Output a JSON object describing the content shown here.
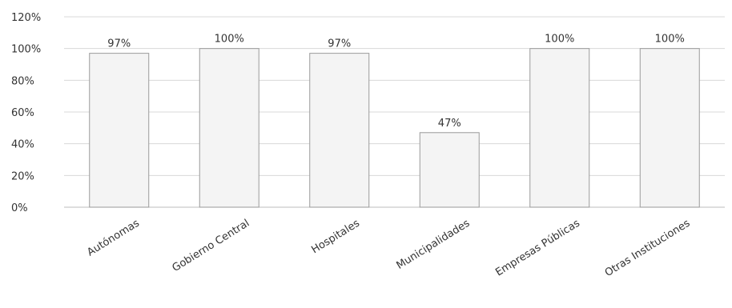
{
  "chart_data": {
    "type": "bar",
    "title": "",
    "xlabel": "",
    "ylabel": "",
    "categories": [
      "Autónomas",
      "Gobierno Central",
      "Hospitales",
      "Municipalidades",
      "Empresas Públicas",
      "Otras Instituciones"
    ],
    "values": [
      97,
      100,
      97,
      47,
      100,
      100
    ],
    "data_labels": [
      "97%",
      "100%",
      "97%",
      "47%",
      "100%",
      "100%"
    ],
    "ylim": [
      0,
      120
    ],
    "yticks": [
      0,
      20,
      40,
      60,
      80,
      100,
      120
    ],
    "ytick_labels": [
      "0%",
      "20%",
      "40%",
      "60%",
      "80%",
      "100%",
      "120%"
    ],
    "grid": true,
    "legend": "none",
    "colors": {
      "bar_fill": "#f4f4f4",
      "bar_stroke": "#9a9a9a",
      "grid": "#d8d8d8",
      "axis": "#bdbdbd",
      "text": "#333333"
    }
  }
}
